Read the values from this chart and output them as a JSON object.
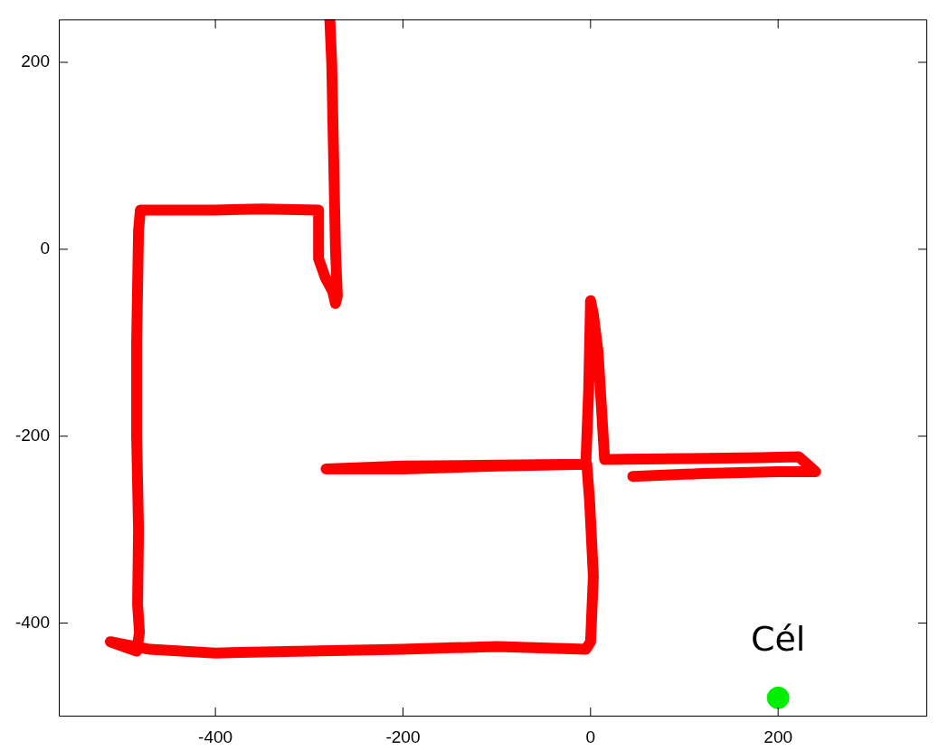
{
  "chart_data": {
    "type": "line",
    "xlim": [
      -567,
      359
    ],
    "ylim": [
      -500,
      246
    ],
    "xticks": [
      -400,
      -200,
      0,
      200
    ],
    "yticks": [
      -400,
      -200,
      0,
      200
    ],
    "series": [
      {
        "color": "#ff0000",
        "x": [
          -278,
          -276,
          -274,
          -272,
          -270,
          -272,
          -275,
          -283,
          -290,
          -290,
          -350,
          -400,
          -480,
          -482,
          -484,
          -484,
          -482,
          -483,
          -481,
          -484,
          -512,
          -470,
          -400,
          -300,
          -200,
          -100,
          -5,
          0,
          3,
          -1,
          -4,
          -100,
          -200,
          -282,
          -200,
          -100,
          -5,
          -2,
          0,
          3,
          8,
          15,
          100,
          180,
          222,
          240,
          200,
          120,
          45
        ],
        "values": [
          246,
          200,
          100,
          0,
          -50,
          -58,
          -45,
          -30,
          -10,
          42,
          43,
          42,
          42,
          20,
          -100,
          -200,
          -300,
          -380,
          -410,
          -430,
          -420,
          -428,
          -432,
          -430,
          -428,
          -425,
          -428,
          -420,
          -350,
          -270,
          -230,
          -232,
          -235,
          -235,
          -232,
          -231,
          -230,
          -150,
          -55,
          -70,
          -110,
          -225,
          -224,
          -223,
          -222,
          -238,
          -238,
          -240,
          -243
        ]
      },
      {
        "type": "scatter",
        "color": "#00ee00",
        "x": [
          200
        ],
        "values": [
          -480
        ]
      }
    ],
    "annotations": [
      {
        "text": "Cél",
        "x": 200,
        "y": -480
      }
    ]
  }
}
